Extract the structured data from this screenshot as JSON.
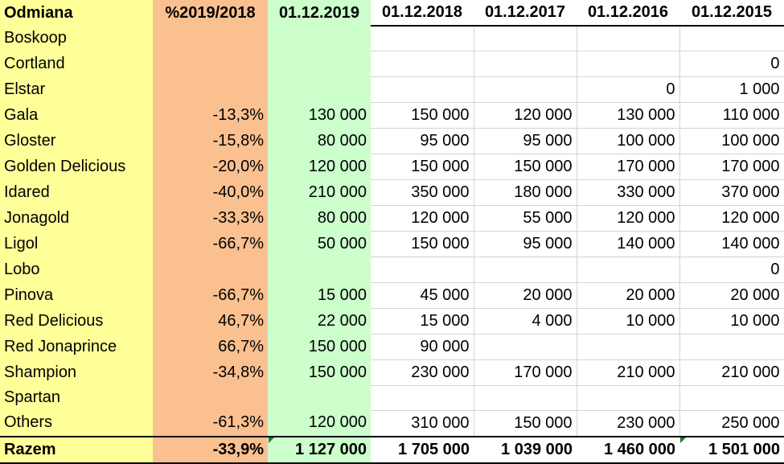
{
  "headers": [
    "Odmiana",
    "%2019/2018",
    "01.12.2019",
    "01.12.2018",
    "01.12.2017",
    "01.12.2016",
    "01.12.2015"
  ],
  "rows": [
    [
      "Boskoop",
      "",
      "",
      "",
      "",
      "",
      ""
    ],
    [
      "Cortland",
      "",
      "",
      "",
      "",
      "",
      "0"
    ],
    [
      "Elstar",
      "",
      "",
      "",
      "",
      "0",
      "1 000"
    ],
    [
      "Gala",
      "-13,3%",
      "130 000",
      "150 000",
      "120 000",
      "130 000",
      "110 000"
    ],
    [
      "Gloster",
      "-15,8%",
      "80 000",
      "95 000",
      "95 000",
      "100 000",
      "100 000"
    ],
    [
      "Golden Delicious",
      "-20,0%",
      "120 000",
      "150 000",
      "150 000",
      "170 000",
      "170 000"
    ],
    [
      "Idared",
      "-40,0%",
      "210 000",
      "350 000",
      "180 000",
      "330 000",
      "370 000"
    ],
    [
      "Jonagold",
      "-33,3%",
      "80 000",
      "120 000",
      "55 000",
      "120 000",
      "120 000"
    ],
    [
      "Ligol",
      "-66,7%",
      "50 000",
      "150 000",
      "95 000",
      "140 000",
      "140 000"
    ],
    [
      "Lobo",
      "",
      "",
      "",
      "",
      "",
      "0"
    ],
    [
      "Pinova",
      "-66,7%",
      "15 000",
      "45 000",
      "20 000",
      "20 000",
      "20 000"
    ],
    [
      "Red Delicious",
      "46,7%",
      "22 000",
      "15 000",
      "4 000",
      "10 000",
      "10 000"
    ],
    [
      "Red Jonaprince",
      "66,7%",
      "150 000",
      "90 000",
      "",
      "",
      ""
    ],
    [
      "Shampion",
      "-34,8%",
      "150 000",
      "230 000",
      "170 000",
      "210 000",
      "210 000"
    ],
    [
      "Spartan",
      "",
      "",
      "",
      "",
      "",
      ""
    ],
    [
      "Others",
      "-61,3%",
      "120 000",
      "310 000",
      "150 000",
      "230 000",
      "250 000"
    ]
  ],
  "total": [
    "Razem",
    "-33,9%",
    "1 127 000",
    "1 705 000",
    "1 039 000",
    "1 460 000",
    "1 501 000"
  ],
  "colors": {
    "name_col": "#ffff99",
    "pct_col": "#fac090",
    "current_col": "#ccffcc"
  }
}
